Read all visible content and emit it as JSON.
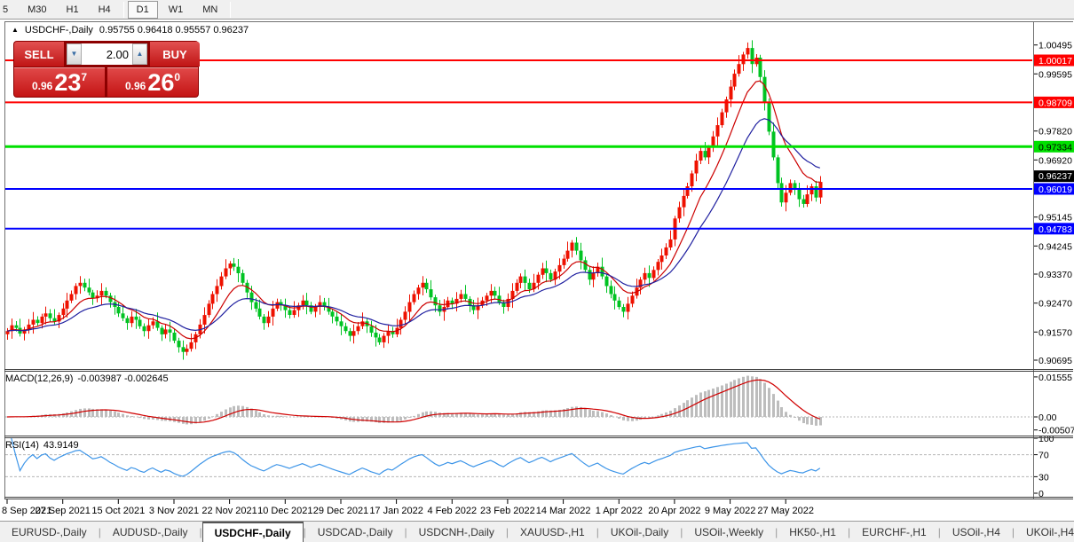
{
  "toolbar": {
    "timeframes": [
      "5",
      "M30",
      "H1",
      "H4",
      "D1",
      "W1",
      "MN"
    ],
    "active": "D1",
    "separators_after": [
      "H4",
      "MN"
    ]
  },
  "icons": {
    "title_arrow": "▲",
    "down_arrow": "▼",
    "up_arrow": "▲",
    "tab_prev": "◄",
    "tab_next": "►"
  },
  "chart": {
    "title": "USDCHF-,Daily",
    "ohlc_text": "0.95755 0.96418 0.95557 0.96237"
  },
  "trade_panel": {
    "sell_label": "SELL",
    "buy_label": "BUY",
    "volume": "2.00",
    "sell_price": {
      "big_figure": "0.96",
      "pips": "23",
      "pipette": "7"
    },
    "buy_price": {
      "big_figure": "0.96",
      "pips": "26",
      "pipette": "0"
    }
  },
  "tabs": {
    "items": [
      "EURUSD-,Daily",
      "AUDUSD-,Daily",
      "USDCHF-,Daily",
      "USDCAD-,Daily",
      "USDCNH-,Daily",
      "XAUUSD-,H1",
      "UKOil-,Daily",
      "USOil-,Weekly",
      "HK50-,H1",
      "EURCHF-,H1",
      "USOil-,H4",
      "UKOil-,H4"
    ],
    "active_index": 2
  },
  "chart_data": {
    "type": "candlestick",
    "symbol": "USDCHF",
    "timeframe": "Daily",
    "last_ohlc": {
      "open": 0.95755,
      "high": 0.96418,
      "low": 0.95557,
      "close": 0.96237
    },
    "first_open": 0.915,
    "closes": [
      0.916,
      0.9178,
      0.917,
      0.9152,
      0.9165,
      0.918,
      0.9195,
      0.9185,
      0.9205,
      0.9215,
      0.92,
      0.919,
      0.921,
      0.923,
      0.9255,
      0.9275,
      0.93,
      0.931,
      0.9295,
      0.928,
      0.9262,
      0.927,
      0.9285,
      0.927,
      0.925,
      0.9235,
      0.9215,
      0.92,
      0.9185,
      0.9205,
      0.9195,
      0.9175,
      0.916,
      0.9178,
      0.919,
      0.917,
      0.915,
      0.9165,
      0.9155,
      0.913,
      0.911,
      0.9095,
      0.9105,
      0.9125,
      0.915,
      0.918,
      0.921,
      0.9245,
      0.9275,
      0.93,
      0.933,
      0.9355,
      0.937,
      0.936,
      0.934,
      0.931,
      0.928,
      0.925,
      0.923,
      0.9205,
      0.9185,
      0.9205,
      0.923,
      0.925,
      0.924,
      0.9225,
      0.921,
      0.9225,
      0.924,
      0.9255,
      0.924,
      0.922,
      0.9235,
      0.925,
      0.9235,
      0.922,
      0.9205,
      0.919,
      0.9175,
      0.916,
      0.9145,
      0.916,
      0.9175,
      0.919,
      0.9175,
      0.9155,
      0.914,
      0.9125,
      0.9145,
      0.916,
      0.915,
      0.917,
      0.9195,
      0.922,
      0.925,
      0.9275,
      0.9295,
      0.931,
      0.929,
      0.9265,
      0.924,
      0.922,
      0.9235,
      0.9255,
      0.9245,
      0.926,
      0.9275,
      0.926,
      0.924,
      0.9225,
      0.924,
      0.9255,
      0.927,
      0.9285,
      0.927,
      0.925,
      0.9235,
      0.926,
      0.9285,
      0.931,
      0.933,
      0.931,
      0.929,
      0.931,
      0.9335,
      0.9355,
      0.934,
      0.932,
      0.9345,
      0.9365,
      0.9385,
      0.941,
      0.9435,
      0.941,
      0.938,
      0.935,
      0.932,
      0.934,
      0.936,
      0.933,
      0.93,
      0.9275,
      0.9255,
      0.9235,
      0.922,
      0.9245,
      0.927,
      0.9295,
      0.932,
      0.934,
      0.9325,
      0.935,
      0.9375,
      0.9395,
      0.942,
      0.9445,
      0.951,
      0.9545,
      0.958,
      0.961,
      0.965,
      0.969,
      0.972,
      0.97,
      0.973,
      0.9765,
      0.98,
      0.984,
      0.988,
      0.992,
      0.996,
      0.999,
      1.002,
      1.004,
      0.999,
      1.001,
      0.995,
      0.987,
      0.978,
      0.97,
      0.962,
      0.956,
      0.959,
      0.962,
      0.96,
      0.957,
      0.9555,
      0.9585,
      0.961,
      0.9575,
      0.96237
    ],
    "wick_pattern": [
      0.0009,
      0.0021,
      0.0013,
      0.0028,
      0.0008,
      0.0017,
      0.0024,
      0.0011
    ],
    "y_ticks": [
      {
        "value": 1.00495,
        "label": "1.00495"
      },
      {
        "value": 0.99595,
        "label": "0.99595"
      },
      {
        "value": 0.9782,
        "label": "0.97820"
      },
      {
        "value": 0.9692,
        "label": "0.96920"
      },
      {
        "value": 0.95145,
        "label": "0.95145"
      },
      {
        "value": 0.94245,
        "label": "0.94245"
      },
      {
        "value": 0.9337,
        "label": "0.93370"
      },
      {
        "value": 0.9247,
        "label": "0.92470"
      },
      {
        "value": 0.9157,
        "label": "0.91570"
      },
      {
        "value": 0.90695,
        "label": "0.90695"
      }
    ],
    "levels": [
      {
        "price": 1.00017,
        "label": "1.00017",
        "color": "#ff0000",
        "text": "#ffffff",
        "width": 2
      },
      {
        "price": 0.98709,
        "label": "0.98709",
        "color": "#ff0000",
        "text": "#ffffff",
        "width": 2
      },
      {
        "price": 0.97334,
        "label": "0.97334",
        "color": "#00e000",
        "text": "#000000",
        "width": 3
      },
      {
        "price": 0.96019,
        "label": "0.96019",
        "color": "#0000ff",
        "text": "#ffffff",
        "width": 2
      },
      {
        "price": 0.94783,
        "label": "0.94783",
        "color": "#0000ff",
        "text": "#ffffff",
        "width": 2
      }
    ],
    "current_price": {
      "value": 0.96237,
      "label": "0.96237",
      "badge": "#000000",
      "text": "#ffffff"
    },
    "x_labels": [
      {
        "i": 0,
        "label": "8 Sep 2021"
      },
      {
        "i": 13,
        "label": "27 Sep 2021"
      },
      {
        "i": 26,
        "label": "15 Oct 2021"
      },
      {
        "i": 39,
        "label": "3 Nov 2021"
      },
      {
        "i": 52,
        "label": "22 Nov 2021"
      },
      {
        "i": 65,
        "label": "10 Dec 2021"
      },
      {
        "i": 78,
        "label": "29 Dec 2021"
      },
      {
        "i": 91,
        "label": "17 Jan 2022"
      },
      {
        "i": 104,
        "label": "4 Feb 2022"
      },
      {
        "i": 117,
        "label": "23 Feb 2022"
      },
      {
        "i": 130,
        "label": "14 Mar 2022"
      },
      {
        "i": 143,
        "label": "1 Apr 2022"
      },
      {
        "i": 156,
        "label": "20 Apr 2022"
      },
      {
        "i": 169,
        "label": "9 May 2022"
      },
      {
        "i": 182,
        "label": "27 May 2022"
      }
    ],
    "ma": {
      "fast_period": 10,
      "slow_period": 21
    },
    "macd": {
      "label": "MACD(12,26,9)",
      "display_values": "-0.003987 -0.002645",
      "fast": 12,
      "slow": 26,
      "signal": 9,
      "axis": [
        {
          "value": 0.01555,
          "label": "0.01555"
        },
        {
          "value": 0,
          "label": "0.00"
        },
        {
          "value": -0.005075,
          "label": "-0.005075"
        }
      ]
    },
    "rsi": {
      "label": "RSI(14)",
      "display_value": "43.9149",
      "period": 14,
      "level_lines": [
        70,
        30
      ],
      "axis": [
        {
          "value": 100,
          "label": "100"
        },
        {
          "value": 70,
          "label": "70"
        },
        {
          "value": 30,
          "label": "30"
        },
        {
          "value": 0,
          "label": "0"
        }
      ]
    },
    "colors": {
      "bull": "#ee1100",
      "bear": "#00c322",
      "ma_fast": "#cc0000",
      "ma_slow": "#2020a0",
      "macd_hist": "#bdbdbd",
      "macd_signal": "#d00000",
      "rsi_line": "#3d95e8",
      "axis_text": "#000000"
    }
  }
}
